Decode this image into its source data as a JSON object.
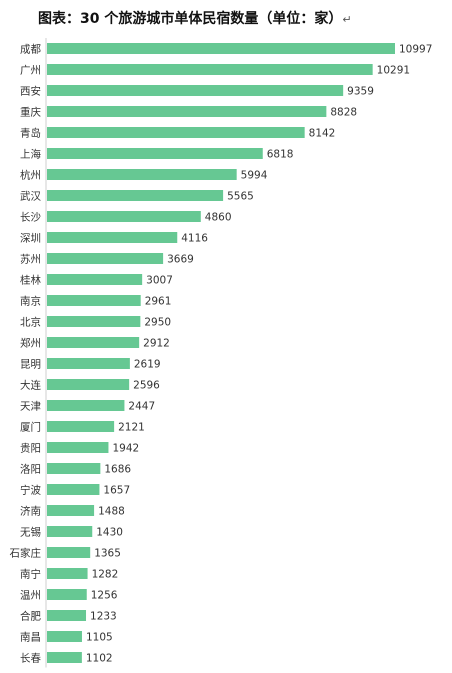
{
  "title": "图表：30 个旅游城市单体民宿数量（单位：家）",
  "title_mark": "↵",
  "colors": {
    "bar": "#66c893",
    "axis": "#cfcfcf",
    "text": "#333333"
  },
  "chart_data": {
    "type": "bar",
    "orientation": "horizontal",
    "title": "图表：30 个旅游城市单体民宿数量（单位：家）",
    "categories": [
      "成都",
      "广州",
      "西安",
      "重庆",
      "青岛",
      "上海",
      "杭州",
      "武汉",
      "长沙",
      "深圳",
      "苏州",
      "桂林",
      "南京",
      "北京",
      "郑州",
      "昆明",
      "大连",
      "天津",
      "厦门",
      "贵阳",
      "洛阳",
      "宁波",
      "济南",
      "无锡",
      "石家庄",
      "南宁",
      "温州",
      "合肥",
      "南昌",
      "长春"
    ],
    "values": [
      10997,
      10291,
      9359,
      8828,
      8142,
      6818,
      5994,
      5565,
      4860,
      4116,
      3669,
      3007,
      2961,
      2950,
      2912,
      2619,
      2596,
      2447,
      2121,
      1942,
      1686,
      1657,
      1488,
      1430,
      1365,
      1282,
      1256,
      1233,
      1105,
      1102
    ],
    "xlim": [
      0,
      10997
    ],
    "grid": false,
    "legend": "none"
  }
}
